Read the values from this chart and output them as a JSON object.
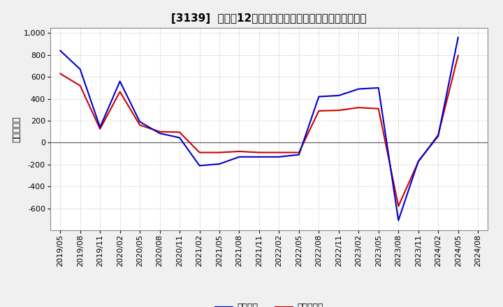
{
  "title": "[3139]  利益だ12か月移動合計の対前年同期増減額の推移",
  "ylabel": "（百万円）",
  "x_labels": [
    "2019/05",
    "2019/08",
    "2019/11",
    "2020/02",
    "2020/05",
    "2020/08",
    "2020/11",
    "2021/02",
    "2021/05",
    "2021/08",
    "2021/11",
    "2022/02",
    "2022/05",
    "2022/08",
    "2022/11",
    "2023/02",
    "2023/05",
    "2023/08",
    "2023/11",
    "2024/02",
    "2024/05",
    "2024/08"
  ],
  "keijo_rieki": [
    840,
    670,
    140,
    560,
    190,
    85,
    45,
    -210,
    -195,
    -130,
    -130,
    -130,
    -110,
    420,
    430,
    490,
    500,
    -710,
    -170,
    60,
    960,
    null
  ],
  "touki_junrieki": [
    630,
    520,
    125,
    465,
    160,
    100,
    95,
    -90,
    -90,
    -80,
    -90,
    -90,
    -90,
    290,
    295,
    320,
    310,
    -580,
    -175,
    70,
    795,
    null
  ],
  "keijo_color": "#0000cc",
  "touki_color": "#cc0000",
  "ylim": [
    -800,
    1050
  ],
  "yticks": [
    -600,
    -400,
    -200,
    0,
    200,
    400,
    600,
    800,
    1000
  ],
  "bg_color": "#f0f0f0",
  "plot_bg_color": "#ffffff",
  "grid_color": "#bbbbbb",
  "legend_keijo": "経常利益",
  "legend_touki": "当期純利益",
  "title_fontsize": 11,
  "tick_fontsize": 8,
  "ylabel_fontsize": 9
}
